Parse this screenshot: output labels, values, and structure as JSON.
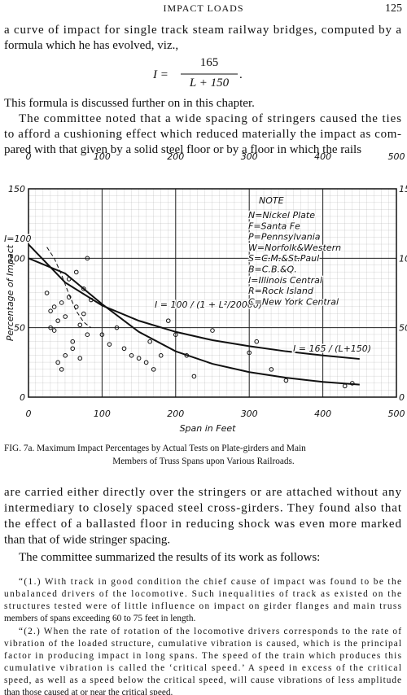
{
  "header": {
    "title": "IMPACT LOADS",
    "page": "125"
  },
  "intro": [
    "a curve of impact for single track steam railway bridges, computed by a",
    "formula which he has evolved, viz.,"
  ],
  "formula": {
    "lhs": "I =",
    "numerator": "165",
    "denominator": "L + 150",
    "end": "."
  },
  "paragraphs_top": [
    [
      "This formula is discussed further on in this chapter."
    ],
    [
      "The committee noted that a wide spacing of stringers caused the ties",
      "to afford a cushioning effect which reduced materially the impact as com-",
      "pared with that given by a solid steel floor or by a floor in which the rails"
    ]
  ],
  "chart_data": {
    "type": "line",
    "xlabel": "Span in Feet",
    "ylabel": "Percentage of Impact",
    "xlim": [
      0,
      500
    ],
    "xticks": [
      0,
      100,
      200,
      300,
      400,
      500
    ],
    "ylim": [
      0,
      150
    ],
    "yticks": [
      0,
      50,
      100,
      150
    ],
    "grid": true,
    "x": [
      0,
      50,
      100,
      150,
      200,
      250,
      300,
      350,
      400,
      450
    ],
    "series": [
      {
        "color": "#111",
        "values": [
          110,
          82.5,
          66,
          55,
          47,
          41,
          36.7,
          33,
          30,
          27.5
        ]
      },
      {
        "color": "#111",
        "values": [
          100,
          89,
          67,
          47,
          33,
          24,
          18,
          14,
          11,
          9
        ]
      }
    ],
    "dashed": {
      "x": [
        25,
        35,
        45,
        55,
        65,
        75,
        85
      ],
      "values": [
        108,
        100,
        88,
        74,
        62,
        54,
        50
      ]
    },
    "scatter": {
      "color": "#111",
      "x": [
        25,
        30,
        35,
        40,
        45,
        50,
        55,
        60,
        65,
        70,
        75,
        80,
        40,
        50,
        60,
        70,
        45,
        55,
        65,
        75,
        30,
        35,
        80,
        85,
        100,
        110,
        120,
        130,
        140,
        150,
        160,
        165,
        170,
        180,
        190,
        200,
        215,
        225,
        250,
        300,
        310,
        330,
        350,
        430,
        440
      ],
      "y": [
        75,
        62,
        48,
        55,
        68,
        58,
        72,
        40,
        65,
        52,
        78,
        45,
        25,
        30,
        35,
        28,
        20,
        85,
        90,
        60,
        50,
        65,
        100,
        70,
        45,
        38,
        50,
        35,
        30,
        28,
        25,
        40,
        20,
        30,
        55,
        45,
        30,
        15,
        48,
        32,
        40,
        20,
        12,
        8,
        10
      ]
    },
    "annotations": [
      "I=100",
      "I = 100 / (1 + L²/20000)",
      "I = 165 / (L+150)"
    ],
    "note_title": "NOTE",
    "note": [
      "N=Nickel Plate",
      "F=Santa Fe",
      "P=Pennsylvania",
      "W=Norfolk&Western",
      "S=C.M.&St.Paul",
      "B=C.B.&Q.",
      "I=Illinois Central",
      "R=Rock Island",
      "C=New York Central"
    ]
  },
  "caption": [
    "FIG. 7a. Maximum Impact Percentages by Actual Tests on Plate-girders and Main",
    "Members of Truss Spans upon Various Railroads."
  ],
  "paragraphs_bottom": [
    [
      "are carried either directly over the stringers or are attached without any",
      "intermediary to closely spaced steel cross-girders. They found also that",
      "the effect of a ballasted floor in reducing shock was even more marked",
      "than that of wide stringer spacing."
    ],
    [
      "The committee summarized the results of its work as follows:"
    ]
  ],
  "quotes": [
    [
      "“(1.) With track in good condition the chief cause of impact was found to be the",
      "unbalanced drivers of the locomotive. Such inequalities of track as existed on the",
      "structures tested were of little influence on impact on girder flanges and main truss",
      "members of spans exceeding 60 to 75 feet in length."
    ],
    [
      "“(2.) When the rate of rotation of the locomotive drivers corresponds to the rate of",
      "vibration of the loaded structure, cumulative vibration is caused, which is the principal",
      "factor in producing impact in long spans. The speed of the train which produces this",
      "cumulative vibration is called the ‘critical speed.’ A speed in excess of the critical",
      "speed, as well as a speed below the critical speed, will cause vibrations of less amplitude",
      "than those caused at or near the critical speed."
    ]
  ]
}
